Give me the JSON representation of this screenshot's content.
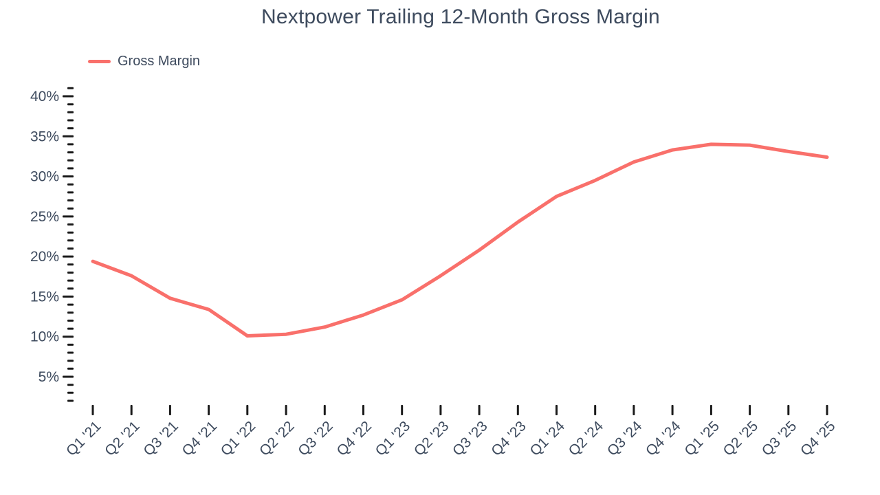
{
  "title": "Nextpower Trailing 12-Month Gross Margin",
  "legend": {
    "items": [
      {
        "label": "Gross Margin",
        "color": "#f9706b"
      }
    ],
    "position": "top-left"
  },
  "colors": {
    "line": "#f9706b",
    "text": "#3e4b5e",
    "tick": "#1a1a1a",
    "background": "#ffffff"
  },
  "chart_data": {
    "type": "line",
    "title": "Nextpower Trailing 12-Month Gross Margin",
    "categories": [
      "Q1 '21",
      "Q2 '21",
      "Q3 '21",
      "Q4 '21",
      "Q1 '22",
      "Q2 '22",
      "Q3 '22",
      "Q4 '22",
      "Q1 '23",
      "Q2 '23",
      "Q3 '23",
      "Q4 '23",
      "Q1 '24",
      "Q2 '24",
      "Q3 '24",
      "Q4 '24",
      "Q1 '25",
      "Q2 '25",
      "Q3 '25",
      "Q4 '25"
    ],
    "series": [
      {
        "name": "Gross Margin",
        "color": "#f9706b",
        "values": [
          19.4,
          17.6,
          14.8,
          13.4,
          10.1,
          10.3,
          11.2,
          12.7,
          14.6,
          17.6,
          20.8,
          24.3,
          27.5,
          29.5,
          31.8,
          33.3,
          34.0,
          33.9,
          33.1,
          32.4
        ]
      }
    ],
    "y_unit": "%",
    "ylim": [
      0,
      42
    ],
    "yticks": [
      5,
      10,
      15,
      20,
      25,
      30,
      35,
      40
    ],
    "ytick_labels": [
      "5%",
      "10%",
      "15%",
      "20%",
      "25%",
      "30%",
      "35%",
      "40%"
    ],
    "minor_ytick_step": 1,
    "minor_ytick_range": [
      2,
      41
    ],
    "xlabel": "",
    "ylabel": "",
    "grid": false,
    "legend_position": "top-left",
    "x_label_rotation_deg": -45
  }
}
